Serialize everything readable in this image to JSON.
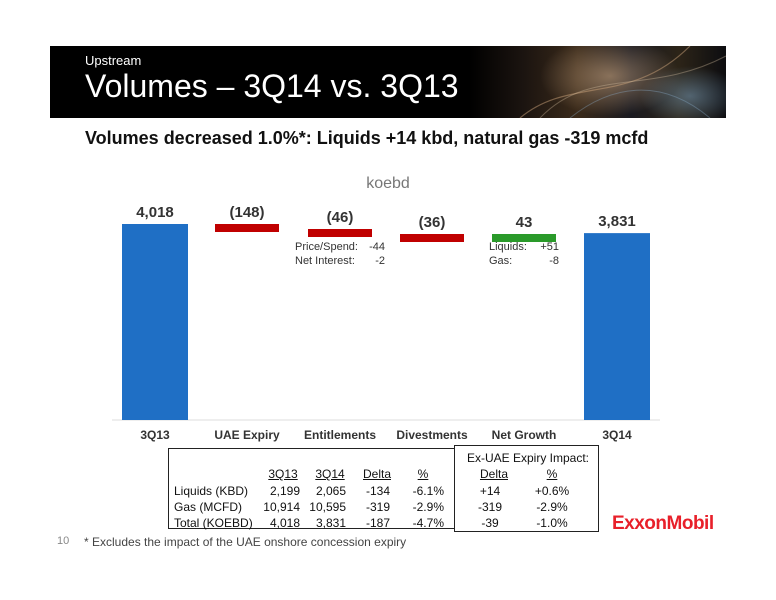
{
  "header": {
    "section": "Upstream",
    "title": "Volumes – 3Q14 vs. 3Q13"
  },
  "headline": "Volumes decreased 1.0%*:  Liquids +14 kbd, natural gas -319 mcfd",
  "chart_data": {
    "type": "waterfall",
    "unit_label": "koebd",
    "categories": [
      "3Q13",
      "UAE Expiry",
      "Entitlements",
      "Divestments",
      "Net Growth",
      "3Q14"
    ],
    "values": [
      4018,
      -148,
      -46,
      -36,
      43,
      3831
    ],
    "value_labels": [
      "4,018",
      "(148)",
      "(46)",
      "(36)",
      "43",
      "3,831"
    ],
    "bar_kinds": [
      "total",
      "delta",
      "delta",
      "delta",
      "delta",
      "total"
    ],
    "annotations": [
      {
        "category": "Entitlements",
        "lines": [
          [
            "Price/Spend:",
            "-44"
          ],
          [
            "Net Interest:",
            "-2"
          ]
        ]
      },
      {
        "category": "Net Growth",
        "lines": [
          [
            "Liquids:",
            "+51"
          ],
          [
            "Gas:",
            "-8"
          ]
        ]
      }
    ],
    "colors": {
      "total": "#1f6fc5",
      "decrease": "#c00000",
      "increase": "#2a9a2a"
    }
  },
  "table": {
    "headers": [
      "3Q13",
      "3Q14",
      "Delta",
      "%"
    ],
    "ex_uae_title": "Ex-UAE Expiry Impact:",
    "ex_uae_headers": [
      "Delta",
      "%"
    ],
    "rows": [
      {
        "label": "Liquids (KBD)",
        "v3q13": "2,199",
        "v3q14": "2,065",
        "delta": "-134",
        "pct": "-6.1%",
        "ex_delta": "+14",
        "ex_pct": "+0.6%"
      },
      {
        "label": "Gas (MCFD)",
        "v3q13": "10,914",
        "v3q14": "10,595",
        "delta": "-319",
        "pct": "-2.9%",
        "ex_delta": "-319",
        "ex_pct": "-2.9%"
      },
      {
        "label": "Total (KOEBD)",
        "v3q13": "4,018",
        "v3q14": "3,831",
        "delta": "-187",
        "pct": "-4.7%",
        "ex_delta": "-39",
        "ex_pct": "-1.0%"
      }
    ]
  },
  "footnote": "* Excludes the impact of the UAE onshore concession expiry",
  "page_number": "10",
  "logo_text": "ExxonMobil"
}
